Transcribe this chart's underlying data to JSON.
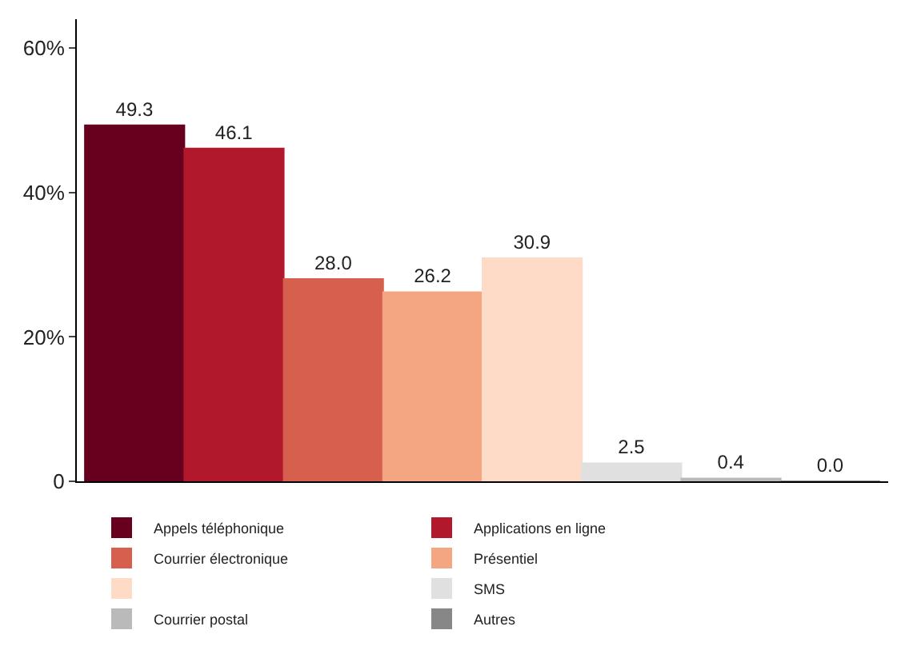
{
  "chart_data": {
    "type": "bar",
    "categories": [
      null
    ],
    "ylim": [
      0,
      64
    ],
    "yticks": [
      0,
      {
        "value": 20,
        "label": "20%"
      },
      {
        "value": 40,
        "label": "40%"
      },
      {
        "value": 60,
        "label": "60%"
      }
    ],
    "grid": false,
    "legend": "bottom",
    "series": [
      {
        "name": "Appels téléphonique",
        "color": "#67001f",
        "values": [
          49.3
        ],
        "value_labels": [
          "49.3"
        ]
      },
      {
        "name": "Applications en ligne",
        "color": "#b2182b",
        "values": [
          46.1
        ],
        "value_labels": [
          "46.1"
        ]
      },
      {
        "name": "Courrier électronique",
        "color": "#d6604d",
        "values": [
          28.0
        ],
        "value_labels": [
          "28.0"
        ]
      },
      {
        "name": "Présentiel",
        "color": "#f4a582",
        "values": [
          26.2
        ],
        "value_labels": [
          "26.2"
        ]
      },
      {
        "color": "#fddbc7",
        "values": [
          30.9
        ],
        "value_labels": [
          "30.9"
        ]
      },
      {
        "name": "SMS",
        "color": "#e0e0e0",
        "values": [
          2.5
        ],
        "value_labels": [
          "2.5"
        ]
      },
      {
        "name": "Courrier postal",
        "color": "#bababa",
        "values": [
          0.4
        ],
        "value_labels": [
          "0.4"
        ]
      },
      {
        "name": "Autres",
        "color": "#878787",
        "values": [
          0.0
        ],
        "value_labels": [
          "0.0"
        ]
      }
    ]
  }
}
